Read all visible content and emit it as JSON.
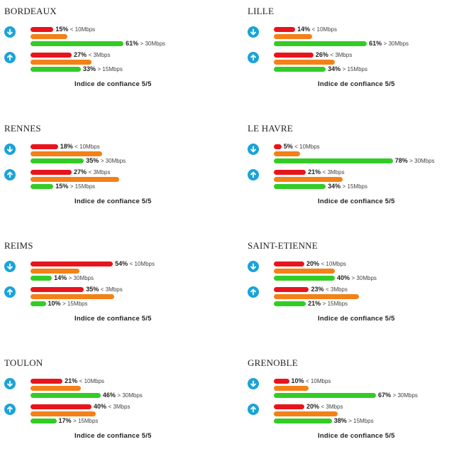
{
  "colors": {
    "red": "#e8141c",
    "orange": "#f38118",
    "green": "#33cc26",
    "icon": "#1aa3d9"
  },
  "icons": {
    "down": "download-arrow-icon",
    "up": "upload-arrow-icon"
  },
  "chart_data": {
    "type": "bar",
    "cities": [
      {
        "name": "BORDEAUX",
        "download": {
          "low": {
            "pct": 15,
            "threshold": "< 10Mbps"
          },
          "mid": {
            "pct": 24
          },
          "high": {
            "pct": 61,
            "threshold": "> 30Mbps"
          }
        },
        "upload": {
          "low": {
            "pct": 27,
            "threshold": "< 3Mbps"
          },
          "mid": {
            "pct": 40
          },
          "high": {
            "pct": 33,
            "threshold": "> 15Mbps"
          }
        },
        "trust": "Indice de confiance 5/5"
      },
      {
        "name": "LILLE",
        "download": {
          "low": {
            "pct": 14,
            "threshold": "< 10Mbps"
          },
          "mid": {
            "pct": 25
          },
          "high": {
            "pct": 61,
            "threshold": "> 30Mbps"
          }
        },
        "upload": {
          "low": {
            "pct": 26,
            "threshold": "< 3Mbps"
          },
          "mid": {
            "pct": 40
          },
          "high": {
            "pct": 34,
            "threshold": "> 15Mbps"
          }
        },
        "trust": "Indice de confiance 5/5"
      },
      {
        "name": "RENNES",
        "download": {
          "low": {
            "pct": 18,
            "threshold": "< 10Mbps"
          },
          "mid": {
            "pct": 47
          },
          "high": {
            "pct": 35,
            "threshold": "> 30Mbps"
          }
        },
        "upload": {
          "low": {
            "pct": 27,
            "threshold": "< 3Mbps"
          },
          "mid": {
            "pct": 58
          },
          "high": {
            "pct": 15,
            "threshold": "> 15Mbps"
          }
        },
        "trust": "Indice de confiance 5/5"
      },
      {
        "name": "LE HAVRE",
        "download": {
          "low": {
            "pct": 5,
            "threshold": "< 10Mbps"
          },
          "mid": {
            "pct": 17
          },
          "high": {
            "pct": 78,
            "threshold": "> 30Mbps"
          }
        },
        "upload": {
          "low": {
            "pct": 21,
            "threshold": "< 3Mbps"
          },
          "mid": {
            "pct": 45
          },
          "high": {
            "pct": 34,
            "threshold": "> 15Mbps"
          }
        },
        "trust": "Indice de confiance 5/5"
      },
      {
        "name": "REIMS",
        "download": {
          "low": {
            "pct": 54,
            "threshold": "< 10Mbps"
          },
          "mid": {
            "pct": 32
          },
          "high": {
            "pct": 14,
            "threshold": "> 30Mbps"
          }
        },
        "upload": {
          "low": {
            "pct": 35,
            "threshold": "< 3Mbps"
          },
          "mid": {
            "pct": 55
          },
          "high": {
            "pct": 10,
            "threshold": "> 15Mbps"
          }
        },
        "trust": "Indice de confiance 5/5"
      },
      {
        "name": "SAINT-ETIENNE",
        "download": {
          "low": {
            "pct": 20,
            "threshold": "< 10Mbps"
          },
          "mid": {
            "pct": 40
          },
          "high": {
            "pct": 40,
            "threshold": "> 30Mbps"
          }
        },
        "upload": {
          "low": {
            "pct": 23,
            "threshold": "< 3Mbps"
          },
          "mid": {
            "pct": 56
          },
          "high": {
            "pct": 21,
            "threshold": "> 15Mbps"
          }
        },
        "trust": "Indice de confiance 5/5"
      },
      {
        "name": "TOULON",
        "download": {
          "low": {
            "pct": 21,
            "threshold": "< 10Mbps"
          },
          "mid": {
            "pct": 33
          },
          "high": {
            "pct": 46,
            "threshold": "> 30Mbps"
          }
        },
        "upload": {
          "low": {
            "pct": 40,
            "threshold": "< 3Mbps"
          },
          "mid": {
            "pct": 43
          },
          "high": {
            "pct": 17,
            "threshold": "> 15Mbps"
          }
        },
        "trust": "Indice de confiance 5/5"
      },
      {
        "name": "GRENOBLE",
        "download": {
          "low": {
            "pct": 10,
            "threshold": "< 10Mbps"
          },
          "mid": {
            "pct": 23
          },
          "high": {
            "pct": 67,
            "threshold": "> 30Mbps"
          }
        },
        "upload": {
          "low": {
            "pct": 20,
            "threshold": "< 3Mbps"
          },
          "mid": {
            "pct": 42
          },
          "high": {
            "pct": 38,
            "threshold": "> 15Mbps"
          }
        },
        "trust": "Indice de confiance 5/5"
      }
    ]
  }
}
